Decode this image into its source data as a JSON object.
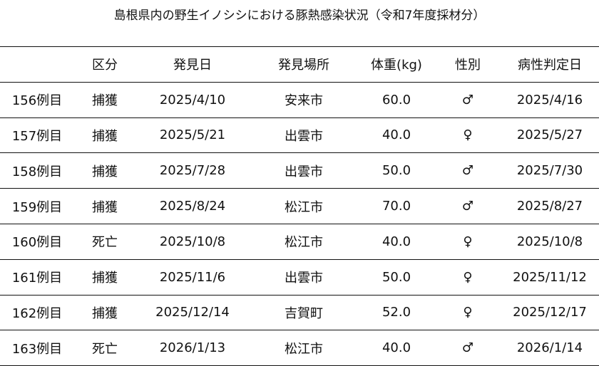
{
  "title": "島根県内の野生イノシシにおける豚熱感染状況（令和7年度採材分）",
  "headers": [
    "",
    "区分",
    "発見日",
    "発見場所",
    "体重(kg)",
    "性別",
    "病性判定日"
  ],
  "rows": [
    [
      "156例目",
      "捕獲",
      "2025/4/10",
      "安来市",
      "60.0",
      "♂",
      "2025/4/16"
    ],
    [
      "157例目",
      "捕獲",
      "2025/5/21",
      "出雲市",
      "40.0",
      "♀",
      "2025/5/27"
    ],
    [
      "158例目",
      "捕獲",
      "2025/7/28",
      "出雲市",
      "50.0",
      "♂",
      "2025/7/30"
    ],
    [
      "159例目",
      "捕獲",
      "2025/8/24",
      "松江市",
      "70.0",
      "♂",
      "2025/8/27"
    ],
    [
      "160例目",
      "死亡",
      "2025/10/8",
      "松江市",
      "40.0",
      "♀",
      "2025/10/8"
    ],
    [
      "161例目",
      "捕獲",
      "2025/11/6",
      "出雲市",
      "50.0",
      "♀",
      "2025/11/12"
    ],
    [
      "162例目",
      "捕獲",
      "2025/12/14",
      "吉賀町",
      "52.0",
      "♀",
      "2025/12/17"
    ],
    [
      "163例目",
      "死亡",
      "2026/1/13",
      "松江市",
      "40.0",
      "♂",
      "2026/1/14"
    ]
  ]
}
